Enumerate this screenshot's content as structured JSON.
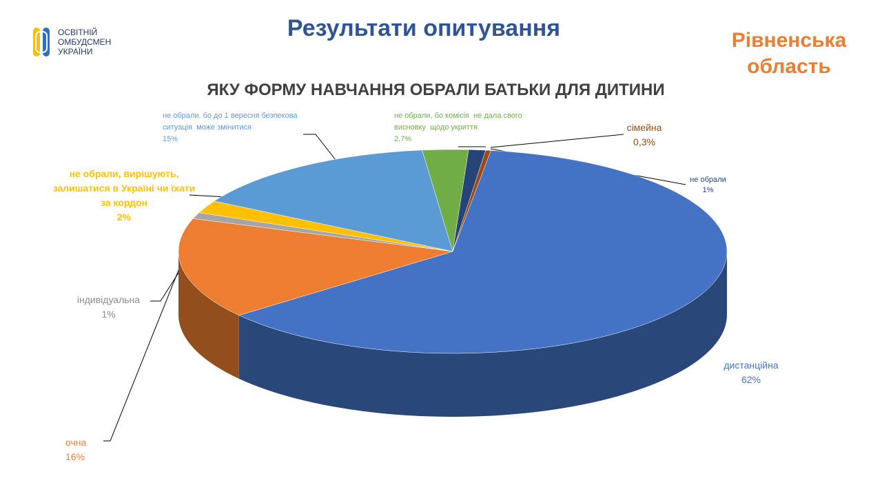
{
  "header": {
    "title": "Результати опитування",
    "region": "Рівненська область",
    "logo": "ОСВІТНІЙ ОМБУДСМЕН УКРАЇНИ"
  },
  "chart_data": {
    "type": "pie",
    "title": "ЯКУ ФОРМУ НАВЧАННЯ ОБРАЛИ БАТЬКИ ДЛЯ ДИТИНИ",
    "categories": [
      "дистанційна",
      "очна",
      "індивідуальна",
      "не обрали, вирішують, залишатися в Україні чи їхати за кордон",
      "не обрали, бо до 1 вересня безпекова ситуація  може змінитися",
      "не обрали, бо комісія  не дала свого висновку  щодо укриття",
      "не обрали",
      "сімейна"
    ],
    "values": [
      62,
      16,
      1,
      2,
      15,
      2.7,
      1,
      0.3
    ],
    "value_labels": [
      "62%",
      "16%",
      "1%",
      "2%",
      "15%",
      "2,7%",
      "1%",
      "0,3%"
    ],
    "colors": [
      "#4472c4",
      "#ed7d31",
      "#a5a5a5",
      "#ffc000",
      "#5b9bd5",
      "#70ad47",
      "#264478",
      "#9e480e"
    ]
  }
}
